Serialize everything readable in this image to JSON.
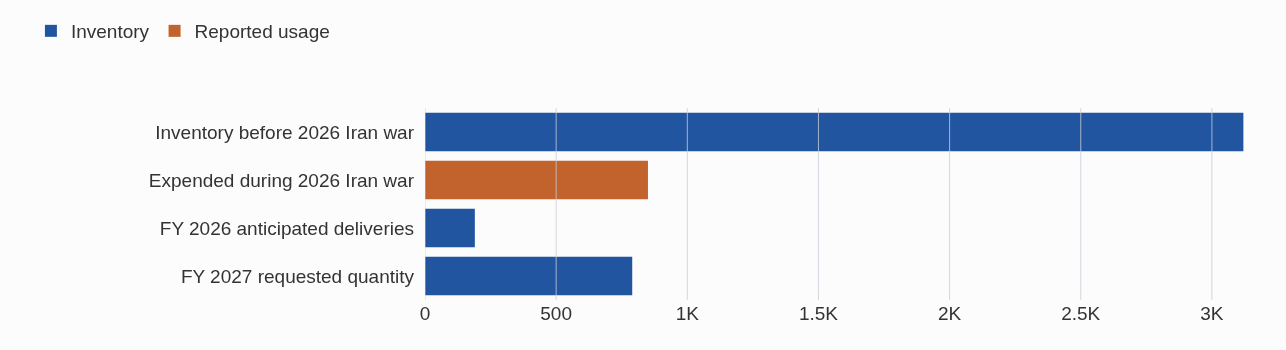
{
  "chart_data": {
    "type": "bar",
    "orientation": "horizontal",
    "categories": [
      "Inventory before 2026 Iran war",
      "Expended during 2026 Iran war",
      "FY 2026 anticipated deliveries",
      "FY 2027 requested quantity"
    ],
    "series": [
      {
        "name": "Inventory",
        "color": "#2255a0",
        "values": [
          3120,
          null,
          190,
          790
        ]
      },
      {
        "name": "Reported usage",
        "color": "#c2622c",
        "values": [
          null,
          850,
          null,
          null
        ]
      }
    ],
    "xlim": [
      0,
      3130
    ],
    "xticks": [
      0,
      500,
      {
        "value": 1000,
        "label": "1K"
      },
      {
        "value": 1500,
        "label": "1.5K"
      },
      {
        "value": 2000,
        "label": "2K"
      },
      {
        "value": 2500,
        "label": "2.5K"
      },
      {
        "value": 3000,
        "label": "3K"
      }
    ],
    "grid": "x",
    "legend": "top left"
  }
}
